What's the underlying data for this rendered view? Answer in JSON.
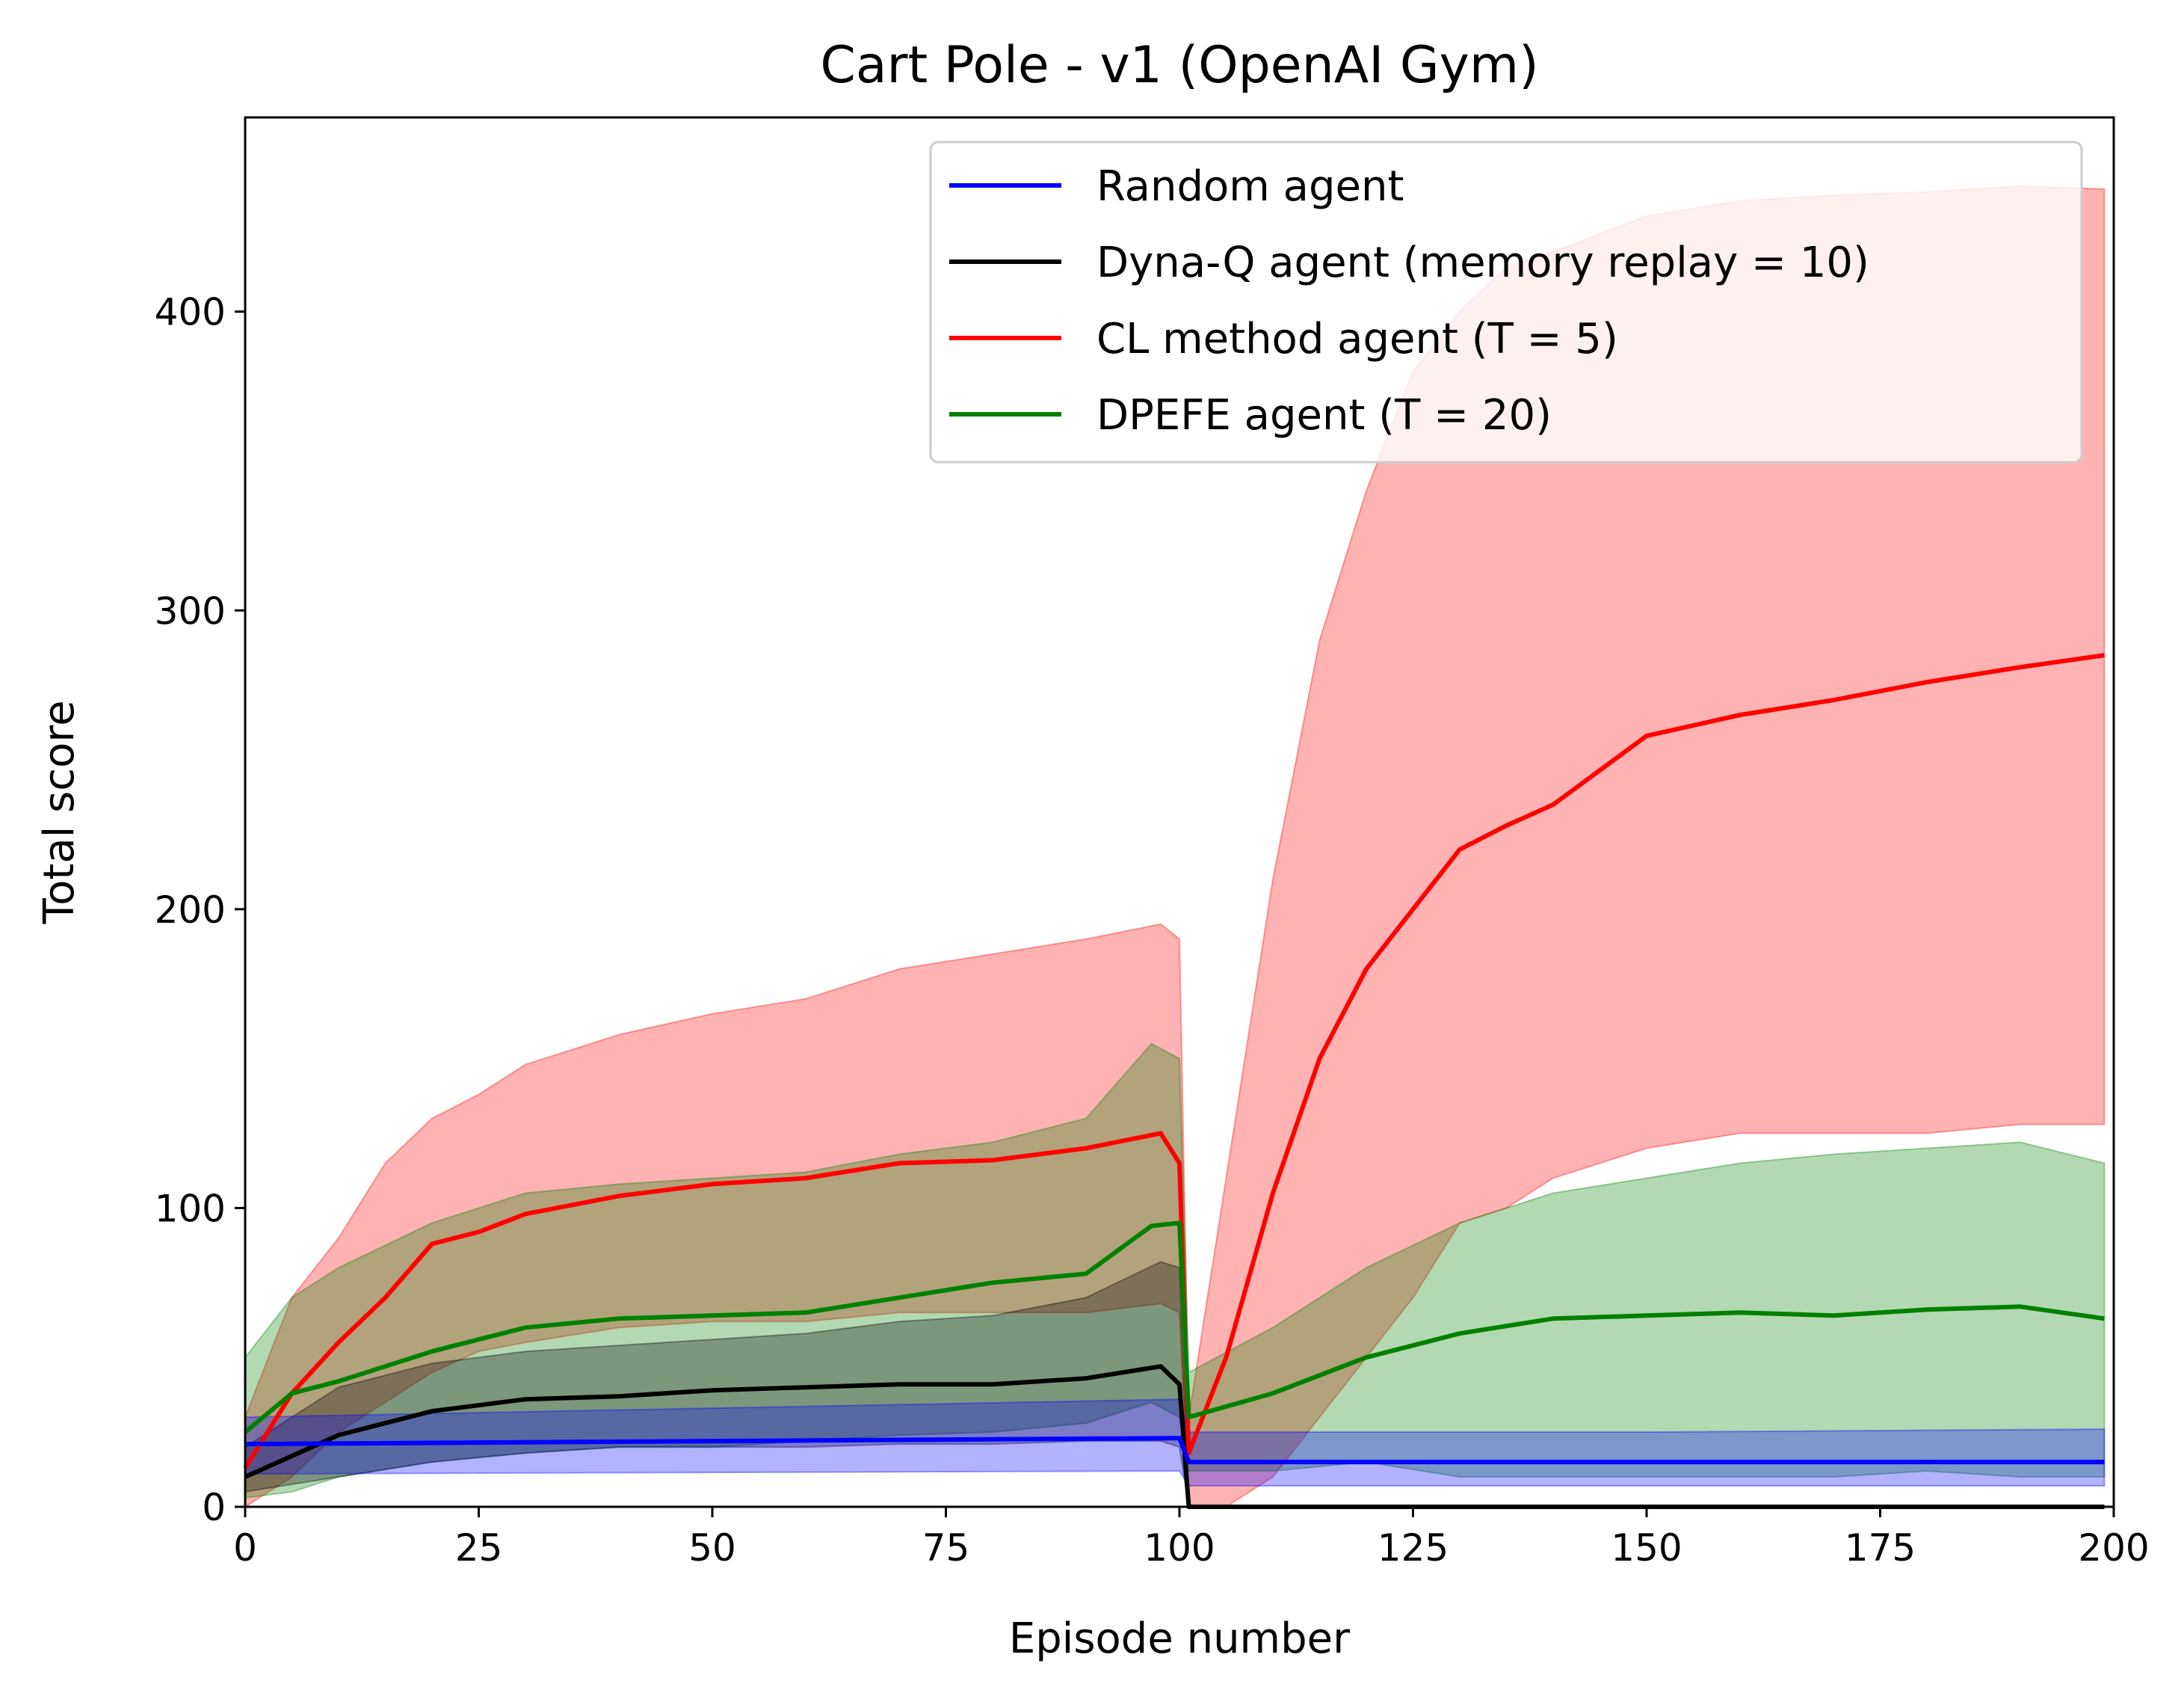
{
  "chart_data": {
    "type": "line",
    "title": "Cart Pole - v1 (OpenAI Gym)",
    "xlabel": "Episode number",
    "ylabel": "Total score",
    "xlim": [
      0,
      200
    ],
    "ylim": [
      0,
      465
    ],
    "xticks": [
      0,
      25,
      50,
      75,
      100,
      125,
      150,
      175,
      200
    ],
    "yticks": [
      0,
      100,
      200,
      300,
      400
    ],
    "grid": false,
    "legend_position": "top-right",
    "series": [
      {
        "name": "Random agent",
        "color": "#0000ff",
        "x": [
          0,
          100,
          101,
          150,
          199
        ],
        "mean": [
          21,
          23,
          15,
          15,
          15
        ],
        "band_low": [
          11,
          12,
          7,
          7,
          7
        ],
        "band_high": [
          30,
          36,
          25,
          25,
          26
        ]
      },
      {
        "name": "Dyna-Q agent (memory replay = 10)",
        "color": "#000000",
        "x": [
          0,
          10,
          20,
          30,
          40,
          50,
          60,
          70,
          80,
          90,
          98,
          100,
          101,
          150,
          199
        ],
        "mean": [
          10,
          24,
          32,
          36,
          37,
          39,
          40,
          41,
          41,
          43,
          47,
          41,
          0,
          0,
          0
        ],
        "band_low": [
          5,
          10,
          15,
          18,
          20,
          20,
          20,
          21,
          21,
          22,
          22,
          20,
          0,
          0,
          0
        ],
        "band_high": [
          20,
          40,
          48,
          52,
          54,
          56,
          58,
          62,
          64,
          70,
          82,
          80,
          0,
          0,
          0
        ]
      },
      {
        "name": "CL method agent (T = 5)",
        "color": "#ff0000",
        "x": [
          0,
          5,
          10,
          15,
          20,
          25,
          30,
          40,
          50,
          60,
          70,
          80,
          90,
          98,
          100,
          101,
          105,
          110,
          115,
          120,
          125,
          130,
          135,
          140,
          150,
          160,
          170,
          180,
          190,
          199
        ],
        "mean": [
          13,
          38,
          55,
          70,
          88,
          92,
          98,
          104,
          108,
          110,
          115,
          116,
          120,
          125,
          115,
          18,
          50,
          105,
          150,
          180,
          200,
          220,
          228,
          235,
          258,
          265,
          270,
          276,
          281,
          285
        ],
        "band_low": [
          0,
          10,
          25,
          35,
          45,
          52,
          55,
          60,
          62,
          62,
          65,
          65,
          65,
          68,
          65,
          0,
          0,
          10,
          30,
          50,
          70,
          95,
          100,
          110,
          120,
          125,
          125,
          125,
          128,
          128
        ],
        "band_high": [
          30,
          70,
          90,
          115,
          130,
          138,
          148,
          158,
          165,
          170,
          180,
          185,
          190,
          195,
          190,
          30,
          110,
          210,
          290,
          340,
          380,
          400,
          415,
          420,
          432,
          437,
          439,
          440,
          442,
          441
        ]
      },
      {
        "name": "DPEFE agent (T = 20)",
        "color": "#008000",
        "x": [
          0,
          5,
          10,
          20,
          30,
          40,
          50,
          60,
          70,
          80,
          90,
          97,
          100,
          101,
          110,
          120,
          130,
          140,
          150,
          160,
          170,
          180,
          190,
          199
        ],
        "mean": [
          25,
          38,
          42,
          52,
          60,
          63,
          64,
          65,
          70,
          75,
          78,
          94,
          95,
          30,
          38,
          50,
          58,
          63,
          64,
          65,
          64,
          66,
          67,
          63
        ],
        "band_low": [
          3,
          5,
          10,
          15,
          18,
          20,
          20,
          22,
          24,
          25,
          28,
          35,
          30,
          12,
          12,
          15,
          10,
          10,
          10,
          10,
          10,
          12,
          10,
          10
        ],
        "band_high": [
          50,
          70,
          80,
          95,
          105,
          108,
          110,
          112,
          118,
          122,
          130,
          155,
          150,
          45,
          60,
          80,
          95,
          105,
          110,
          115,
          118,
          120,
          122,
          115
        ]
      }
    ]
  }
}
